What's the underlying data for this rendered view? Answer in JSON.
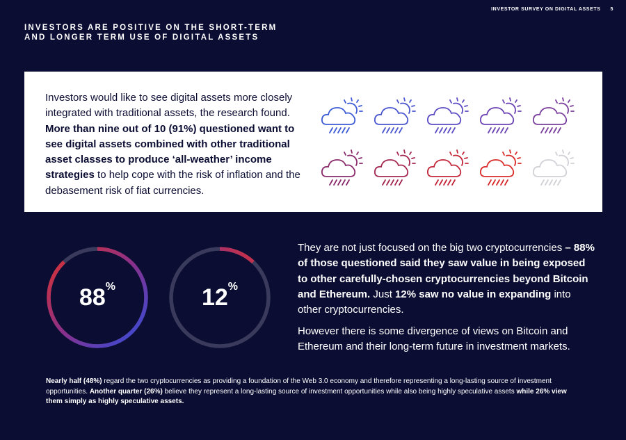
{
  "header": {
    "section": "INVESTOR SURVEY ON DIGITAL ASSETS",
    "page_number": "5"
  },
  "title": {
    "line1": "INVESTORS ARE POSITIVE ON THE SHORT-TERM",
    "line2": "AND LONGER TERM USE OF DIGITAL ASSETS"
  },
  "card": {
    "intro": "Investors would like to see digital assets more closely integrated with traditional assets, the research found. ",
    "bold": "More than nine out of 10 (91%) questioned want to see digital assets combined with other traditional asset classes to produce ‘all-weather’ income strategies",
    "outro": " to help cope with the risk of inflation and the debasement risk of fiat currencies."
  },
  "icons": [
    {
      "name": "cloud-rain-sun-icon",
      "color": "#3c5bd6"
    },
    {
      "name": "cloud-rain-sun-icon",
      "color": "#4a56cf"
    },
    {
      "name": "cloud-rain-sun-icon",
      "color": "#5b4cc6"
    },
    {
      "name": "cloud-rain-sun-icon",
      "color": "#6b43b4"
    },
    {
      "name": "cloud-rain-sun-icon",
      "color": "#7a3e9c"
    },
    {
      "name": "cloud-rain-sun-icon",
      "color": "#8a2a6a"
    },
    {
      "name": "cloud-rain-sun-icon",
      "color": "#a4274f"
    },
    {
      "name": "cloud-rain-sun-icon",
      "color": "#c4263a"
    },
    {
      "name": "cloud-rain-sun-icon",
      "color": "#d92a2a"
    },
    {
      "name": "cloud-rain-sun-icon",
      "color": "#d0d0d6"
    }
  ],
  "rings": [
    {
      "value": 88,
      "label": "88",
      "unit": "%"
    },
    {
      "value": 12,
      "label": "12",
      "unit": "%"
    }
  ],
  "para1": {
    "intro": "They are not just focused on the big two cryptocurrencies ",
    "bold1": "– 88% of those questioned said they saw value in being exposed to other carefully-chosen cryptocurrencies beyond Bitcoin and Ethereum.",
    "mid": " Just ",
    "bold2": "12% saw no value in expanding",
    "outro": " into other cryptocurrencies."
  },
  "para2": "However there is some divergence of views on Bitcoin and Ethereum and their long-term future in investment markets.",
  "note": {
    "b1": "Nearly half (48%)",
    "t1": " regard the two cryptocurrencies as providing a foundation of the Web 3.0 economy and therefore representing a long-lasting source of investment opportunities. ",
    "b2": "Another quarter (26%)",
    "t2": " believe they represent a long-lasting source of investment opportunities while also being highly speculative assets ",
    "b3": "while 26% view them simply as highly speculative assets."
  },
  "colors": {
    "background": "#0b0d33",
    "ring_track": "#3a3b5c",
    "ring_start": "#2e4fe0",
    "ring_end": "#e0322a"
  }
}
